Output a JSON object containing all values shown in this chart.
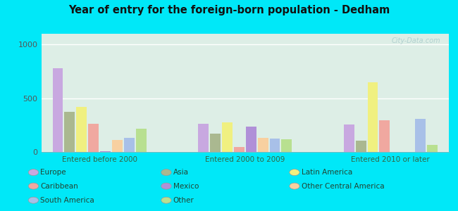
{
  "title": "Year of entry for the foreign-born population - Dedham",
  "groups": [
    "Entered before 2000",
    "Entered 2000 to 2009",
    "Entered 2010 or later"
  ],
  "categories": [
    "Europe",
    "Asia",
    "Latin America",
    "Caribbean",
    "Mexico",
    "Other Central America",
    "South America",
    "Other"
  ],
  "colors": [
    "#c8a8e0",
    "#aab890",
    "#f0f080",
    "#f0a8a0",
    "#b090d8",
    "#f8d0a0",
    "#a8c0e8",
    "#b8e090"
  ],
  "values": {
    "Entered before 2000": [
      780,
      375,
      420,
      265,
      8,
      110,
      130,
      215
    ],
    "Entered 2000 to 2009": [
      265,
      170,
      275,
      48,
      235,
      130,
      125,
      115
    ],
    "Entered 2010 or later": [
      255,
      105,
      650,
      295,
      0,
      0,
      305,
      65
    ]
  },
  "ylim": [
    0,
    1100
  ],
  "yticks": [
    0,
    500,
    1000
  ],
  "background_outer": "#00e8f8",
  "background_inner": "#ddeee6",
  "watermark": "City-Data.com",
  "legend_col1": [
    "Europe",
    "Caribbean",
    "South America"
  ],
  "legend_col2": [
    "Asia",
    "Mexico",
    "Other"
  ],
  "legend_col3": [
    "Latin America",
    "Other Central America"
  ]
}
